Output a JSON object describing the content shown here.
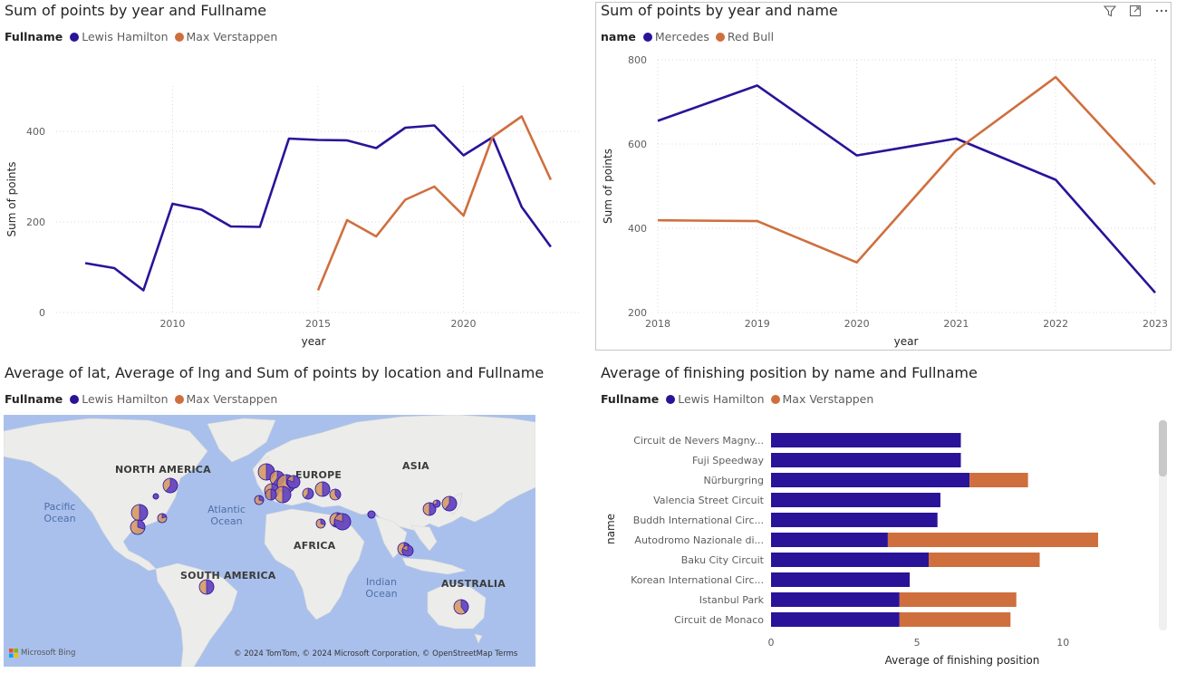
{
  "colors": {
    "hamilton": "#2a1399",
    "verstappen": "#cf6f3e",
    "mercedes": "#2a1399",
    "redbull": "#cf6f3e",
    "grid": "#d9d9d9",
    "axis": "#605e5c"
  },
  "chart1": {
    "title": "Sum of points by year and Fullname",
    "legend_title": "Fullname",
    "legend": [
      "Lewis Hamilton",
      "Max Verstappen"
    ],
    "ylabel": "Sum of points",
    "xlabel": "year",
    "chart_data": {
      "type": "line",
      "title": "Sum of points by year and Fullname",
      "xlabel": "year",
      "ylabel": "Sum of points",
      "xlim": [
        2006,
        2024
      ],
      "ylim": [
        0,
        500
      ],
      "xticks": [
        2010,
        2015,
        2020
      ],
      "yticks": [
        0,
        200,
        400
      ],
      "grid": true,
      "legend_position": "top-left",
      "series": [
        {
          "name": "Lewis Hamilton",
          "x": [
            2007,
            2008,
            2009,
            2010,
            2011,
            2012,
            2013,
            2014,
            2015,
            2016,
            2017,
            2018,
            2019,
            2020,
            2021,
            2022,
            2023
          ],
          "values": [
            109,
            98,
            49,
            240,
            227,
            190,
            189,
            384,
            381,
            380,
            363,
            408,
            413,
            347,
            387,
            233,
            145
          ]
        },
        {
          "name": "Max Verstappen",
          "x": [
            2015,
            2016,
            2017,
            2018,
            2019,
            2020,
            2021,
            2022,
            2023
          ],
          "values": [
            49,
            204,
            168,
            249,
            278,
            214,
            388,
            433,
            293
          ]
        }
      ]
    }
  },
  "chart2": {
    "title": "Sum of points by year and name",
    "legend_title": "name",
    "legend": [
      "Mercedes",
      "Red Bull"
    ],
    "ylabel": "Sum of points",
    "xlabel": "year",
    "chart_data": {
      "type": "line",
      "title": "Sum of points by year and name",
      "xlabel": "year",
      "ylabel": "Sum of points",
      "xlim": [
        2018,
        2023
      ],
      "ylim": [
        200,
        800
      ],
      "xticks": [
        2018,
        2019,
        2020,
        2021,
        2022,
        2023
      ],
      "yticks": [
        200,
        400,
        600,
        800
      ],
      "grid": true,
      "legend_position": "top-left",
      "series": [
        {
          "name": "Mercedes",
          "x": [
            2018,
            2019,
            2020,
            2021,
            2022,
            2023
          ],
          "values": [
            655,
            739,
            573,
            613,
            515,
            247
          ]
        },
        {
          "name": "Red Bull",
          "x": [
            2018,
            2019,
            2020,
            2021,
            2022,
            2023
          ],
          "values": [
            419,
            417,
            319,
            585,
            759,
            504
          ]
        }
      ]
    }
  },
  "map": {
    "title": "Average of lat, Average of lng and Sum of points by location and Fullname",
    "legend_title": "Fullname",
    "legend": [
      "Lewis Hamilton",
      "Max Verstappen"
    ],
    "continents": {
      "north_america": "NORTH AMERICA",
      "europe": "EUROPE",
      "asia": "ASIA",
      "africa": "AFRICA",
      "south_america": "SOUTH AMERICA",
      "australia": "AUSTRALIA"
    },
    "oceans": {
      "pacific": "Pacific Ocean",
      "atlantic": "Atlantic Ocean",
      "indian": "Indian Ocean"
    },
    "attribution": "© 2024 TomTom, © 2024 Microsoft Corporation, © OpenStreetMap  Terms",
    "bing": "Microsoft Bing"
  },
  "chart4": {
    "title": "Average of finishing position by name and Fullname",
    "legend_title": "Fullname",
    "legend": [
      "Lewis Hamilton",
      "Max Verstappen"
    ],
    "ylabel": "name",
    "xlabel": "Average of finishing position",
    "chart_data": {
      "type": "bar",
      "orientation": "horizontal",
      "stacked": true,
      "title": "Average of finishing position by name and Fullname",
      "xlabel": "Average of finishing position",
      "ylabel": "name",
      "xlim": [
        0,
        13
      ],
      "xticks": [
        0,
        5,
        10
      ],
      "legend_position": "top-left",
      "categories": [
        "Circuit de Nevers Magny...",
        "Fuji Speedway",
        "Nürburgring",
        "Valencia Street Circuit",
        "Buddh International Circ...",
        "Autodromo Nazionale di...",
        "Baku City Circuit",
        "Korean International Circ...",
        "Istanbul Park",
        "Circuit de Monaco"
      ],
      "series": [
        {
          "name": "Lewis Hamilton",
          "values": [
            6.5,
            6.5,
            6.8,
            5.8,
            5.7,
            4.0,
            5.4,
            4.75,
            4.4,
            4.4
          ]
        },
        {
          "name": "Max Verstappen",
          "values": [
            0,
            0,
            2.0,
            0,
            0,
            7.2,
            3.8,
            0,
            4.0,
            3.8
          ]
        }
      ]
    }
  }
}
